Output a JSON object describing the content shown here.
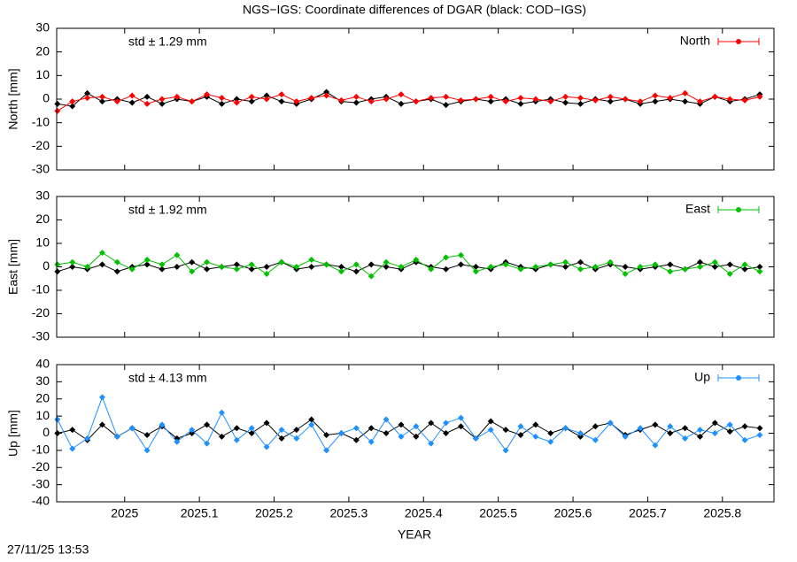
{
  "title": "NGS−IGS: Coordinate differences of DGAR (black: COD−IGS)",
  "footer": "27/11/25 13:53",
  "chart_data": [
    {
      "type": "line",
      "ylabel": "North [mm]",
      "annotation": "std ± 1.29 mm",
      "xlim": [
        2024.909,
        2025.869
      ],
      "xticks": [
        2025,
        2025.1,
        2025.2,
        2025.3,
        2025.4,
        2025.5,
        2025.6,
        2025.7,
        2025.8
      ],
      "ylim": [
        -30,
        30
      ],
      "yticks": [
        -30,
        -20,
        -10,
        0,
        10,
        20,
        30
      ],
      "legend": "upper right",
      "x": [
        2024.91,
        2024.93,
        2024.95,
        2024.97,
        2024.99,
        2025.01,
        2025.03,
        2025.05,
        2025.07,
        2025.09,
        2025.11,
        2025.13,
        2025.15,
        2025.17,
        2025.19,
        2025.21,
        2025.23,
        2025.25,
        2025.27,
        2025.29,
        2025.31,
        2025.33,
        2025.35,
        2025.37,
        2025.39,
        2025.41,
        2025.43,
        2025.45,
        2025.47,
        2025.49,
        2025.51,
        2025.53,
        2025.55,
        2025.57,
        2025.59,
        2025.61,
        2025.63,
        2025.65,
        2025.67,
        2025.69,
        2025.71,
        2025.73,
        2025.75,
        2025.77,
        2025.79,
        2025.81,
        2025.83,
        2025.85
      ],
      "series": [
        {
          "color": "#000000",
          "values": [
            -2,
            -3,
            2.5,
            -1,
            0,
            -1.5,
            1,
            -2,
            0,
            -1,
            1,
            -2,
            0,
            -1,
            1.5,
            -1,
            -2,
            0,
            3,
            -1,
            -1.5,
            0,
            1,
            -2,
            -1,
            0,
            -2.5,
            -1,
            0,
            -1,
            0,
            -2,
            -1,
            0,
            -1.5,
            -2,
            0,
            -1,
            0,
            -2,
            -1,
            0,
            -1,
            -2,
            1,
            -1,
            0,
            2
          ]
        },
        {
          "name": "North",
          "color": "#ff0000",
          "values": [
            -5,
            -1,
            0.5,
            1,
            -1,
            1.5,
            -2,
            0,
            1,
            -1,
            2,
            0.5,
            -1.5,
            1,
            0,
            2,
            -1,
            0.5,
            1.5,
            -0.5,
            1,
            -1,
            0,
            2,
            -1,
            0.5,
            1,
            -0.5,
            0,
            1,
            -1,
            0.5,
            0,
            -1,
            1,
            0.5,
            -0.5,
            1,
            0,
            -1,
            1.5,
            0.5,
            2.5,
            -1,
            1,
            0,
            -0.5,
            1
          ]
        }
      ]
    },
    {
      "type": "line",
      "ylabel": "East [mm]",
      "annotation": "std ± 1.92 mm",
      "xlim": [
        2024.909,
        2025.869
      ],
      "xticks": [
        2025,
        2025.1,
        2025.2,
        2025.3,
        2025.4,
        2025.5,
        2025.6,
        2025.7,
        2025.8
      ],
      "ylim": [
        -30,
        30
      ],
      "yticks": [
        -30,
        -20,
        -10,
        0,
        10,
        20,
        30
      ],
      "legend": "upper right",
      "x": [
        2024.91,
        2024.93,
        2024.95,
        2024.97,
        2024.99,
        2025.01,
        2025.03,
        2025.05,
        2025.07,
        2025.09,
        2025.11,
        2025.13,
        2025.15,
        2025.17,
        2025.19,
        2025.21,
        2025.23,
        2025.25,
        2025.27,
        2025.29,
        2025.31,
        2025.33,
        2025.35,
        2025.37,
        2025.39,
        2025.41,
        2025.43,
        2025.45,
        2025.47,
        2025.49,
        2025.51,
        2025.53,
        2025.55,
        2025.57,
        2025.59,
        2025.61,
        2025.63,
        2025.65,
        2025.67,
        2025.69,
        2025.71,
        2025.73,
        2025.75,
        2025.77,
        2025.79,
        2025.81,
        2025.83,
        2025.85
      ],
      "series": [
        {
          "color": "#000000",
          "values": [
            -2,
            0,
            -1,
            1,
            -2,
            0,
            1,
            -1,
            0,
            2,
            -1,
            0,
            1,
            -1,
            0,
            2,
            -1,
            0,
            1,
            0,
            -2,
            1,
            0,
            -1,
            2,
            0,
            -1,
            1,
            0,
            -1,
            2,
            0,
            -1,
            1,
            0,
            2,
            -1,
            1,
            0,
            -1,
            0,
            1,
            -1,
            2,
            0,
            1,
            -1,
            0
          ]
        },
        {
          "name": "East",
          "color": "#00c000",
          "values": [
            1,
            2,
            0,
            6,
            2,
            -1,
            3,
            1,
            5,
            -2,
            2,
            0,
            -1,
            1,
            -3,
            2,
            0,
            3,
            1,
            -2,
            1,
            -4,
            2,
            0,
            3,
            -1,
            4,
            5,
            -2,
            0,
            1,
            -1,
            0,
            1,
            2,
            -1,
            0,
            2,
            -3,
            0,
            1,
            -2,
            -1,
            0,
            2,
            -3,
            1,
            -2
          ]
        }
      ]
    },
    {
      "type": "line",
      "ylabel": "Up [mm]",
      "annotation": "std ± 4.13 mm",
      "xlabel": "YEAR",
      "xlim": [
        2024.909,
        2025.869
      ],
      "xticks": [
        2025,
        2025.1,
        2025.2,
        2025.3,
        2025.4,
        2025.5,
        2025.6,
        2025.7,
        2025.8
      ],
      "ylim": [
        -40,
        40
      ],
      "yticks": [
        -40,
        -30,
        -20,
        -10,
        0,
        10,
        20,
        30,
        40
      ],
      "legend": "upper right",
      "x": [
        2024.91,
        2024.93,
        2024.95,
        2024.97,
        2024.99,
        2025.01,
        2025.03,
        2025.05,
        2025.07,
        2025.09,
        2025.11,
        2025.13,
        2025.15,
        2025.17,
        2025.19,
        2025.21,
        2025.23,
        2025.25,
        2025.27,
        2025.29,
        2025.31,
        2025.33,
        2025.35,
        2025.37,
        2025.39,
        2025.41,
        2025.43,
        2025.45,
        2025.47,
        2025.49,
        2025.51,
        2025.53,
        2025.55,
        2025.57,
        2025.59,
        2025.61,
        2025.63,
        2025.65,
        2025.67,
        2025.69,
        2025.71,
        2025.73,
        2025.75,
        2025.77,
        2025.79,
        2025.81,
        2025.83,
        2025.85
      ],
      "series": [
        {
          "color": "#000000",
          "values": [
            0,
            2,
            -4,
            5,
            -2,
            3,
            -1,
            4,
            -3,
            0,
            5,
            -2,
            3,
            0,
            6,
            -3,
            2,
            8,
            -1,
            0,
            -4,
            3,
            0,
            5,
            -2,
            6,
            0,
            4,
            -3,
            7,
            2,
            -1,
            5,
            0,
            3,
            -2,
            4,
            6,
            -1,
            2,
            5,
            0,
            3,
            -2,
            6,
            1,
            4,
            3
          ]
        },
        {
          "name": "Up",
          "color": "#1e90ff",
          "values": [
            8,
            -9,
            -3,
            21,
            -2,
            3,
            -10,
            5,
            -5,
            2,
            -6,
            12,
            -4,
            3,
            -8,
            2,
            -3,
            5,
            -10,
            0,
            3,
            -5,
            8,
            -2,
            4,
            -6,
            6,
            9,
            -3,
            2,
            -10,
            4,
            -2,
            -5,
            3,
            0,
            -4,
            6,
            -2,
            3,
            -7,
            4,
            -3,
            2,
            0,
            5,
            -4,
            -1
          ]
        }
      ]
    }
  ]
}
